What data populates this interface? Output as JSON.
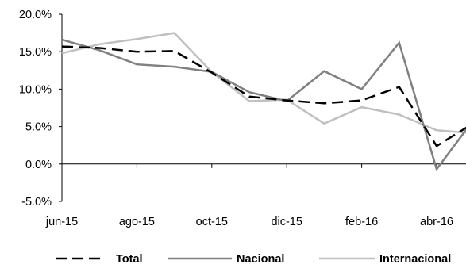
{
  "chart_data": {
    "type": "line",
    "title": "",
    "xlabel": "",
    "ylabel": "",
    "ylim": [
      -5,
      20
    ],
    "y_ticks": [
      -5,
      0,
      5,
      10,
      15,
      20
    ],
    "y_tick_labels": [
      "-5.0%",
      "0.0%",
      "5.0%",
      "10.0%",
      "15.0%",
      "20.0%"
    ],
    "x": [
      "jun-15",
      "jul-15",
      "ago-15",
      "sep-15",
      "oct-15",
      "nov-15",
      "dic-15",
      "ene-16",
      "feb-16",
      "mar-16",
      "abr-16",
      "may-16"
    ],
    "x_tick_labels": [
      "jun-15",
      "ago-15",
      "oct-15",
      "dic-15",
      "feb-16",
      "abr-16"
    ],
    "grid": false,
    "legend_position": "bottom",
    "series": [
      {
        "name": "Total",
        "color": "#000000",
        "dash": "dashed",
        "values": [
          15.7,
          15.5,
          15.0,
          15.1,
          12.2,
          9.0,
          8.5,
          8.1,
          8.5,
          10.3,
          2.4,
          5.5
        ]
      },
      {
        "name": "Nacional",
        "color": "#808080",
        "dash": "solid",
        "values": [
          16.6,
          15.2,
          13.3,
          13.0,
          12.3,
          9.6,
          8.4,
          12.4,
          10.0,
          16.2,
          -0.7,
          6.0
        ]
      },
      {
        "name": "Internacional",
        "color": "#c0c0c0",
        "dash": "solid",
        "values": [
          14.8,
          16.0,
          16.7,
          17.5,
          12.3,
          8.4,
          8.6,
          5.4,
          7.6,
          6.6,
          4.5,
          4.1
        ]
      }
    ]
  }
}
